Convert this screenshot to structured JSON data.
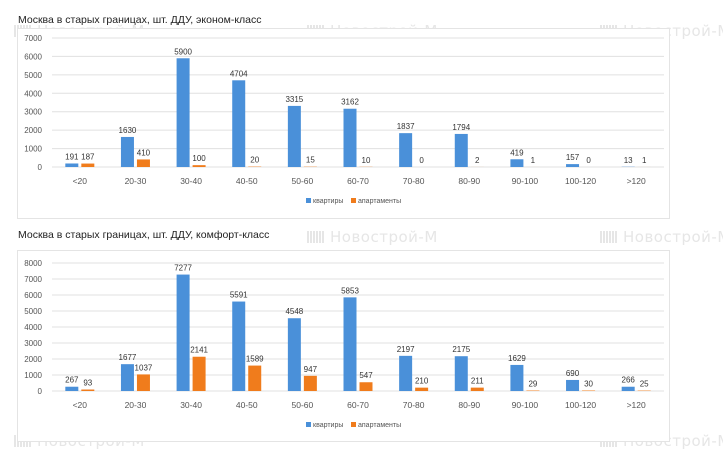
{
  "watermark": "Новострой-М",
  "colors": {
    "series1": "#4a90d9",
    "series2": "#f07c1c",
    "grid": "#e0e0e0",
    "text": "#555555"
  },
  "chart_data": [
    {
      "type": "bar",
      "title": "Москва в старых границах, шт. ДДУ, эконом-класс",
      "categories": [
        "<20",
        "20-30",
        "30-40",
        "40-50",
        "50-60",
        "60-70",
        "70-80",
        "80-90",
        "90-100",
        "100-120",
        ">120"
      ],
      "series": [
        {
          "name": "квартиры",
          "values": [
            191,
            1630,
            5900,
            4704,
            3315,
            3162,
            1837,
            1794,
            419,
            157,
            13
          ]
        },
        {
          "name": "апартаменты",
          "values": [
            187,
            410,
            100,
            20,
            15,
            10,
            0,
            2,
            1,
            0,
            1
          ]
        }
      ],
      "yticks": [
        "0",
        "1000",
        "2000",
        "3000",
        "4000",
        "5000",
        "6000",
        "7000"
      ],
      "ylim": [
        0,
        7000
      ],
      "xlabel": "",
      "ylabel": "",
      "grid": true,
      "legend": "bottom-center"
    },
    {
      "type": "bar",
      "title": "Москва в старых границах, шт. ДДУ, комфорт-класс",
      "categories": [
        "<20",
        "20-30",
        "30-40",
        "40-50",
        "50-60",
        "60-70",
        "70-80",
        "80-90",
        "90-100",
        "100-120",
        ">120"
      ],
      "series": [
        {
          "name": "квартиры",
          "values": [
            267,
            1677,
            7277,
            5591,
            4548,
            5853,
            2197,
            2175,
            1629,
            690,
            266
          ]
        },
        {
          "name": "апартаменты",
          "values": [
            93,
            1037,
            2141,
            1589,
            947,
            547,
            210,
            211,
            29,
            30,
            25
          ]
        }
      ],
      "yticks": [
        "0",
        "1000",
        "2000",
        "3000",
        "4000",
        "5000",
        "6000",
        "7000",
        "8000"
      ],
      "ylim": [
        0,
        8000
      ],
      "xlabel": "",
      "ylabel": "",
      "grid": true,
      "legend": "bottom-center"
    }
  ]
}
